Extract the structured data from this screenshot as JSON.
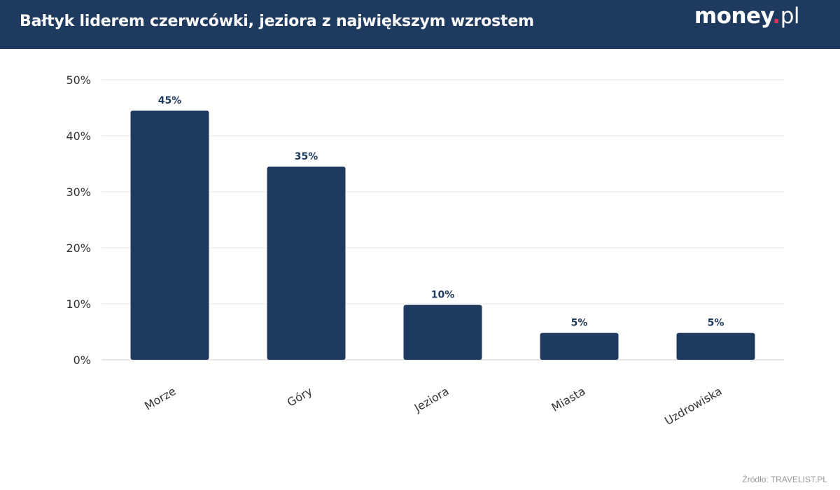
{
  "header": {
    "title": "Bałtyk liderem czerwcówki, jeziora z największym wzrostem",
    "logo": {
      "name": "money",
      "dot": ".",
      "tld": "pl"
    }
  },
  "chart_data": {
    "type": "bar",
    "title": "Bałtyk liderem czerwcówki, jeziora z największym wzrostem",
    "categories": [
      "Morze",
      "Góry",
      "Jeziora",
      "Miasta",
      "Uzdrowiska"
    ],
    "values": [
      44.5,
      34.5,
      9.8,
      4.8,
      4.8
    ],
    "data_labels": [
      "45%",
      "35%",
      "10%",
      "5%",
      "5%"
    ],
    "xlabel": "",
    "ylabel": "",
    "ylim": [
      0,
      50
    ],
    "yticks": [
      0,
      10,
      20,
      30,
      40,
      50
    ],
    "ytick_labels": [
      "0%",
      "10%",
      "20%",
      "30%",
      "40%",
      "50%"
    ],
    "grid": true,
    "bar_color": "#1f3a5f"
  },
  "footer": {
    "source": "Źródło: TRAVELIST.PL"
  },
  "colors": {
    "header_bg": "#1f3a5f",
    "bar": "#1f3a5f",
    "logo_dot": "#e5315c",
    "grid": "#e3e3e3"
  }
}
